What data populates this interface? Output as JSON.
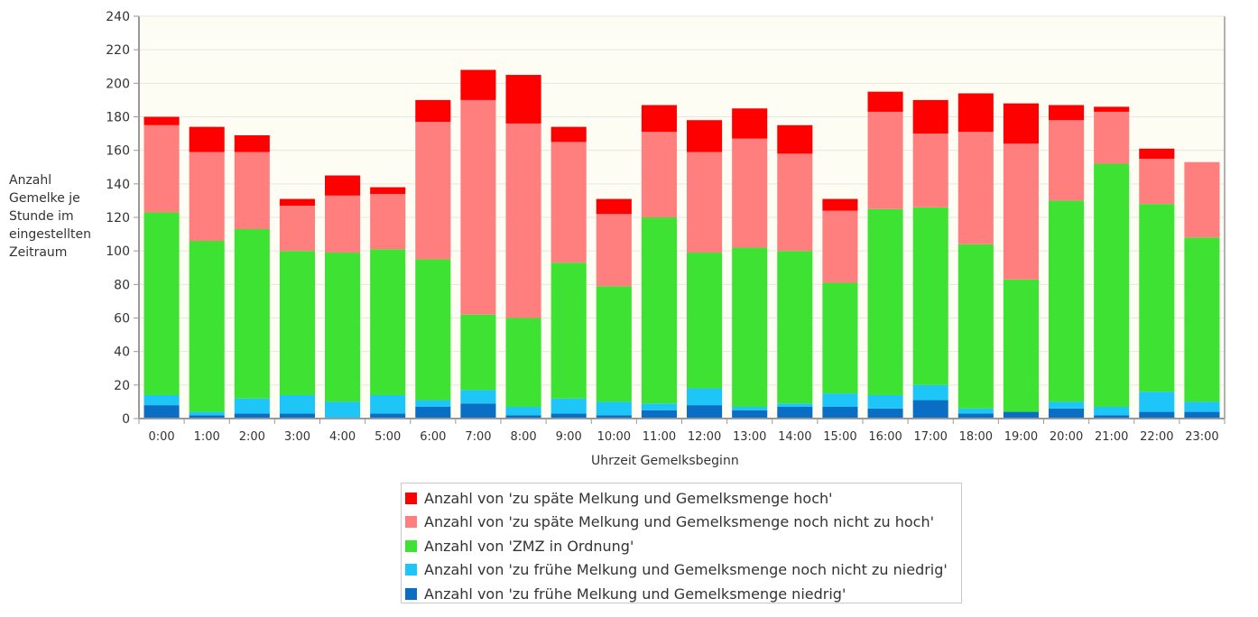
{
  "chart_data": {
    "type": "bar",
    "stacked": true,
    "title": "",
    "xlabel": "Uhrzeit Gemelksbeginn",
    "ylabel": "Anzahl\nGemelke je\nStunde im\neingestellten\nZeitraum",
    "ylim": [
      0,
      240
    ],
    "yticks": [
      0,
      20,
      40,
      60,
      80,
      100,
      120,
      140,
      160,
      180,
      200,
      220,
      240
    ],
    "grid": true,
    "legend_position": "bottom",
    "categories": [
      "0:00",
      "1:00",
      "2:00",
      "3:00",
      "4:00",
      "5:00",
      "6:00",
      "7:00",
      "8:00",
      "9:00",
      "10:00",
      "11:00",
      "12:00",
      "13:00",
      "14:00",
      "15:00",
      "16:00",
      "17:00",
      "18:00",
      "19:00",
      "20:00",
      "21:00",
      "22:00",
      "23:00"
    ],
    "series": [
      {
        "name": "Anzahl von 'zu frühe Melkung und Gemelksmenge niedrig'",
        "color": "#0a6fc4",
        "values": [
          8,
          2,
          3,
          3,
          0,
          3,
          7,
          9,
          2,
          3,
          2,
          5,
          8,
          5,
          7,
          7,
          6,
          11,
          3,
          4,
          6,
          2,
          4,
          4
        ]
      },
      {
        "name": "Anzahl von 'zu frühe Melkung und Gemelksmenge noch nicht zu niedrig'",
        "color": "#1ec6f8",
        "values": [
          6,
          2,
          9,
          11,
          10,
          11,
          4,
          8,
          5,
          9,
          8,
          4,
          10,
          2,
          2,
          8,
          8,
          9,
          3,
          0,
          4,
          5,
          12,
          6
        ]
      },
      {
        "name": "Anzahl von 'ZMZ in Ordnung'",
        "color": "#3de232",
        "values": [
          109,
          102,
          101,
          86,
          89,
          87,
          84,
          45,
          53,
          81,
          69,
          111,
          81,
          95,
          91,
          66,
          111,
          106,
          98,
          79,
          120,
          145,
          112,
          98
        ]
      },
      {
        "name": "Anzahl von 'zu späte Melkung und Gemelksmenge noch nicht zu hoch'",
        "color": "#ff7f7f",
        "values": [
          52,
          53,
          46,
          27,
          34,
          33,
          82,
          128,
          116,
          72,
          43,
          51,
          60,
          65,
          58,
          43,
          58,
          44,
          67,
          81,
          48,
          31,
          27,
          45
        ]
      },
      {
        "name": "Anzahl von 'zu späte Melkung und Gemelksmenge hoch'",
        "color": "#ff0000",
        "values": [
          5,
          15,
          10,
          4,
          12,
          4,
          13,
          18,
          29,
          9,
          9,
          16,
          19,
          18,
          17,
          7,
          12,
          20,
          23,
          24,
          9,
          3,
          6,
          0
        ]
      }
    ],
    "legend_order": [
      4,
      3,
      2,
      1,
      0
    ],
    "colors": {
      "plot_background": "#fefdf4",
      "grid": "#e6e6e6",
      "axis": "#999999"
    }
  }
}
